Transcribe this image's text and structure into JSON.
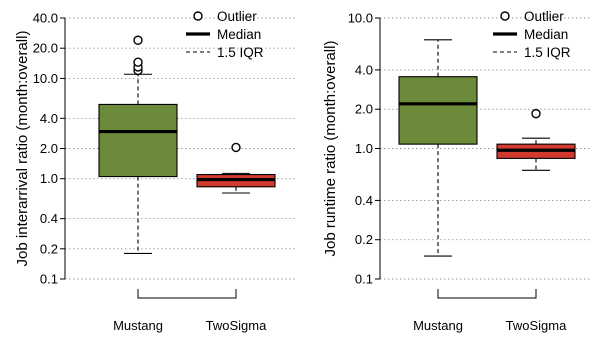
{
  "chart_data": [
    {
      "type": "box",
      "ylabel": "Job interarrival ratio (month:overall)",
      "yscale": "log",
      "ylim": [
        0.1,
        40
      ],
      "yticks": [
        0.1,
        0.2,
        0.4,
        1.0,
        2.0,
        4.0,
        10.0,
        20.0,
        40.0
      ],
      "ytick_labels": [
        "0.1",
        "0.2",
        "0.4",
        "1.0",
        "2.0",
        "4.0",
        "10.0",
        "20.0",
        "40.0"
      ],
      "grid": true,
      "categories": [
        "Mustang",
        "TwoSigma"
      ],
      "boxes": [
        {
          "name": "Mustang",
          "color": "#6b8a3a",
          "whisker_low": 0.18,
          "q1": 1.05,
          "median": 2.95,
          "q3": 5.5,
          "whisker_high": 11.0,
          "outliers": [
            12.0,
            13.0,
            14.5,
            24.0
          ]
        },
        {
          "name": "TwoSigma",
          "color": "#d23a30",
          "whisker_low": 0.72,
          "q1": 0.83,
          "median": 0.98,
          "q3": 1.1,
          "whisker_high": 1.13,
          "outliers": [
            2.05
          ]
        }
      ],
      "legend": {
        "position": "top-right",
        "items": [
          {
            "label": "Outlier",
            "style": "circle"
          },
          {
            "label": "Median",
            "style": "thick-line"
          },
          {
            "label": "1.5 IQR",
            "style": "dashed-line"
          }
        ]
      }
    },
    {
      "type": "box",
      "ylabel": "Job runtime ratio (month:overall)",
      "yscale": "log",
      "ylim": [
        0.1,
        10
      ],
      "yticks": [
        0.1,
        0.2,
        0.4,
        1.0,
        2.0,
        4.0,
        10.0
      ],
      "ytick_labels": [
        "0.1",
        "0.2",
        "0.4",
        "1.0",
        "2.0",
        "4.0",
        "10.0"
      ],
      "grid": true,
      "categories": [
        "Mustang",
        "TwoSigma"
      ],
      "boxes": [
        {
          "name": "Mustang",
          "color": "#6b8a3a",
          "whisker_low": 0.15,
          "q1": 1.08,
          "median": 2.2,
          "q3": 3.55,
          "whisker_high": 6.8,
          "outliers": []
        },
        {
          "name": "TwoSigma",
          "color": "#d23a30",
          "whisker_low": 0.68,
          "q1": 0.84,
          "median": 0.97,
          "q3": 1.08,
          "whisker_high": 1.2,
          "outliers": [
            1.85
          ]
        }
      ],
      "legend": {
        "position": "top-right",
        "items": [
          {
            "label": "Outlier",
            "style": "circle"
          },
          {
            "label": "Median",
            "style": "thick-line"
          },
          {
            "label": "1.5 IQR",
            "style": "dashed-line"
          }
        ]
      }
    }
  ]
}
